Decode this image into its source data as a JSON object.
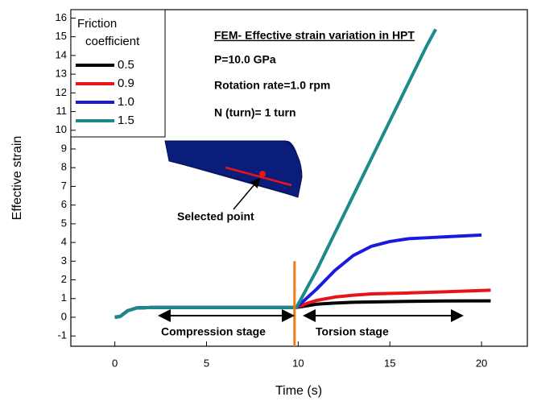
{
  "chart_data": {
    "type": "line",
    "xlabel": "Time (s)",
    "ylabel": "Effective strain",
    "xlim": [
      -2.4,
      22.5
    ],
    "ylim": [
      -1.55,
      16.45
    ],
    "xticks": [
      0,
      5,
      10,
      15,
      20
    ],
    "yticks": [
      -1,
      0,
      1,
      2,
      3,
      4,
      5,
      6,
      7,
      8,
      9,
      10,
      11,
      12,
      13,
      14,
      15,
      16
    ],
    "legend_title": "Friction coefficient",
    "legend": "upper left",
    "series": [
      {
        "name": "0.5",
        "color": "#000000",
        "x": [
          0,
          0.3,
          0.7,
          1.2,
          2,
          4,
          6,
          8,
          9.9,
          10.5,
          11,
          12,
          13,
          14,
          16,
          18,
          20.5
        ],
        "values": [
          0,
          0.05,
          0.35,
          0.5,
          0.52,
          0.52,
          0.52,
          0.52,
          0.52,
          0.62,
          0.7,
          0.76,
          0.8,
          0.82,
          0.85,
          0.87,
          0.88
        ]
      },
      {
        "name": "0.9",
        "color": "#e8141c",
        "x": [
          0,
          0.3,
          0.7,
          1.2,
          2,
          4,
          6,
          8,
          9.9,
          10.5,
          11,
          12,
          13,
          14,
          16,
          18,
          20.5
        ],
        "values": [
          0,
          0.05,
          0.35,
          0.5,
          0.52,
          0.52,
          0.52,
          0.52,
          0.52,
          0.75,
          0.9,
          1.08,
          1.18,
          1.25,
          1.3,
          1.36,
          1.45
        ]
      },
      {
        "name": "1.0",
        "color": "#1a1adf",
        "x": [
          0,
          0.3,
          0.7,
          1.2,
          2,
          4,
          6,
          8,
          9.9,
          11,
          12,
          13,
          14,
          15,
          16,
          17,
          18,
          19,
          20
        ],
        "values": [
          0,
          0.05,
          0.35,
          0.5,
          0.52,
          0.52,
          0.52,
          0.52,
          0.52,
          1.5,
          2.5,
          3.3,
          3.8,
          4.05,
          4.2,
          4.25,
          4.3,
          4.35,
          4.4
        ]
      },
      {
        "name": "1.5",
        "color": "#1a8a8a",
        "x": [
          0,
          0.3,
          0.7,
          1.2,
          2,
          4,
          6,
          8,
          9.9,
          11,
          12,
          13,
          14,
          15,
          16,
          17,
          17.5
        ],
        "values": [
          0,
          0.05,
          0.35,
          0.5,
          0.52,
          0.52,
          0.52,
          0.52,
          0.52,
          2.5,
          4.5,
          6.5,
          8.5,
          10.5,
          12.5,
          14.5,
          15.4
        ]
      }
    ],
    "vline": {
      "x": 9.8,
      "ymin": -1.55,
      "ymax": 3,
      "color": "#f07c10"
    },
    "annotations": {
      "heading": "FEM- Effective strain variation in HPT",
      "pressure": "P=10.0 GPa",
      "rotation": "Rotation rate=1.0 rpm",
      "turns": "N (turn)= 1 turn",
      "point": "Selected point",
      "compression": "Compression stage",
      "torsion": "Torsion stage"
    }
  }
}
